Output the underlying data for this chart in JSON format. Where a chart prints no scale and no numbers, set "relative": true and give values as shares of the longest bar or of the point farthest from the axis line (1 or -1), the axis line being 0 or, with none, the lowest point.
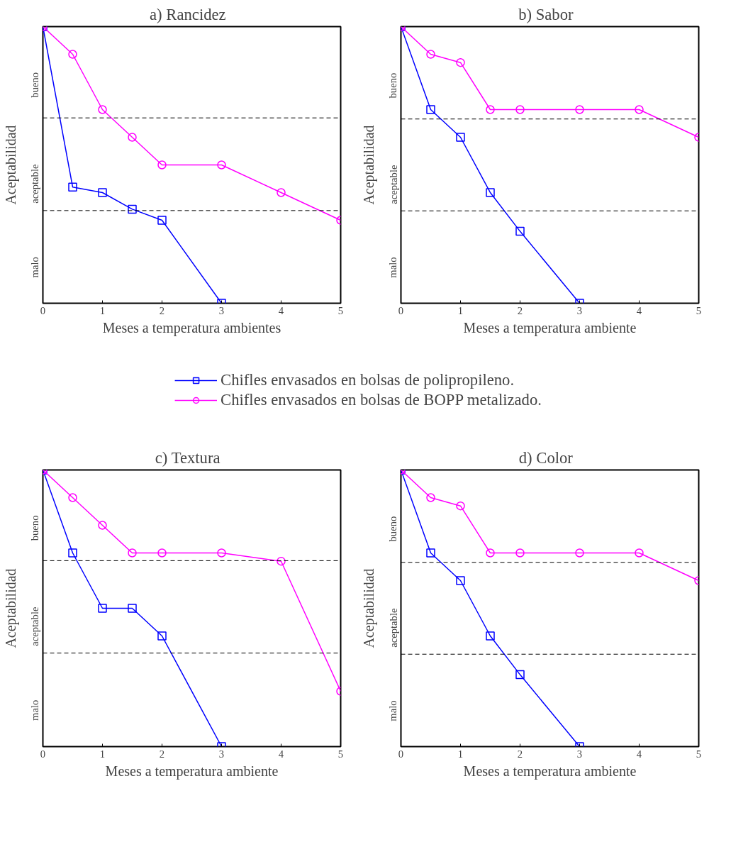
{
  "chart_data": [
    {
      "type": "line",
      "title": "a)   Rancidez",
      "xlabel": "Meses a temperatura ambientes",
      "ylabel": "Aceptabilidad",
      "relative": true,
      "xlim": [
        0,
        5
      ],
      "xticks": [
        0,
        1,
        2,
        3,
        4,
        5
      ],
      "grid": false,
      "legend": "bottom",
      "ref_lines": [
        {
          "axis": "y",
          "value": 0.67,
          "line_style": "dashed"
        },
        {
          "axis": "y",
          "value": 0.335,
          "line_style": "dashed"
        }
      ],
      "annotations": [
        "bueno",
        "aceptable",
        "malo"
      ],
      "series": [
        {
          "name": "Chifles envasados en bolsas de polipropileno.",
          "color": "#0000ff",
          "marker": "square",
          "x": [
            0,
            0.5,
            1,
            1.5,
            2,
            3
          ],
          "values": [
            1,
            0.42,
            0.4,
            0.34,
            0.3,
            0
          ]
        },
        {
          "name": "Chifles envasados en bolsas de BOPP metalizado.",
          "color": "#ff00ff",
          "marker": "circle",
          "x": [
            0,
            0.5,
            1,
            1.5,
            2,
            3,
            4,
            5
          ],
          "values": [
            1,
            0.9,
            0.7,
            0.6,
            0.5,
            0.5,
            0.4,
            0.3
          ]
        }
      ]
    },
    {
      "type": "line",
      "title": "b)   Sabor",
      "xlabel": "Meses a temperatura ambiente",
      "ylabel": "Aceptabilidad",
      "relative": true,
      "xlim": [
        0,
        5
      ],
      "xticks": [
        0,
        1,
        2,
        3,
        4,
        5
      ],
      "grid": false,
      "ref_lines": [
        {
          "axis": "y",
          "value": 0.666,
          "line_style": "dashed"
        },
        {
          "axis": "y",
          "value": 0.334,
          "line_style": "dashed"
        }
      ],
      "annotations": [
        "bueno",
        "aceptable",
        "malo"
      ],
      "series": [
        {
          "color": "#0000ff",
          "marker": "square",
          "x": [
            0,
            0.5,
            1,
            1.5,
            2,
            3
          ],
          "values": [
            1,
            0.7,
            0.6,
            0.4,
            0.26,
            0
          ]
        },
        {
          "color": "#ff00ff",
          "marker": "circle",
          "x": [
            0,
            0.5,
            1,
            1.5,
            2,
            3,
            4,
            5
          ],
          "values": [
            1,
            0.9,
            0.87,
            0.7,
            0.7,
            0.7,
            0.7,
            0.6
          ]
        }
      ]
    },
    {
      "type": "line",
      "title": "c)   Textura",
      "xlabel": "Meses a temperatura ambiente",
      "ylabel": "Aceptabilidad",
      "relative": true,
      "xlim": [
        0,
        5
      ],
      "xticks": [
        0,
        1,
        2,
        3,
        4,
        5
      ],
      "grid": false,
      "ref_lines": [
        {
          "axis": "y",
          "value": 0.672,
          "line_style": "dashed"
        },
        {
          "axis": "y",
          "value": 0.338,
          "line_style": "dashed"
        }
      ],
      "annotations": [
        "bueno",
        "aceptable",
        "malo"
      ],
      "series": [
        {
          "color": "#0000ff",
          "marker": "square",
          "x": [
            0,
            0.5,
            1,
            1.5,
            2,
            3
          ],
          "values": [
            1,
            0.7,
            0.5,
            0.5,
            0.4,
            0
          ]
        },
        {
          "color": "#ff00ff",
          "marker": "circle",
          "x": [
            0,
            0.5,
            1,
            1.5,
            2,
            3,
            4,
            5
          ],
          "values": [
            1,
            0.9,
            0.8,
            0.7,
            0.7,
            0.7,
            0.67,
            0.2
          ]
        }
      ]
    },
    {
      "type": "line",
      "title": "d)   Color",
      "xlabel": "Meses a temperatura ambiente",
      "ylabel": "Aceptabilidad",
      "relative": true,
      "xlim": [
        0,
        5
      ],
      "xticks": [
        0,
        1,
        2,
        3,
        4,
        5
      ],
      "grid": false,
      "ref_lines": [
        {
          "axis": "y",
          "value": 0.666,
          "line_style": "dashed"
        },
        {
          "axis": "y",
          "value": 0.334,
          "line_style": "dashed"
        }
      ],
      "annotations": [
        "bueno",
        "aceptable",
        "malo"
      ],
      "series": [
        {
          "color": "#0000ff",
          "marker": "square",
          "x": [
            0,
            0.5,
            1,
            1.5,
            2,
            3
          ],
          "values": [
            1,
            0.7,
            0.6,
            0.4,
            0.26,
            0
          ]
        },
        {
          "color": "#ff00ff",
          "marker": "circle",
          "x": [
            0,
            0.5,
            1,
            1.5,
            2,
            3,
            4,
            5
          ],
          "values": [
            1,
            0.9,
            0.87,
            0.7,
            0.7,
            0.7,
            0.7,
            0.6
          ]
        }
      ]
    }
  ]
}
